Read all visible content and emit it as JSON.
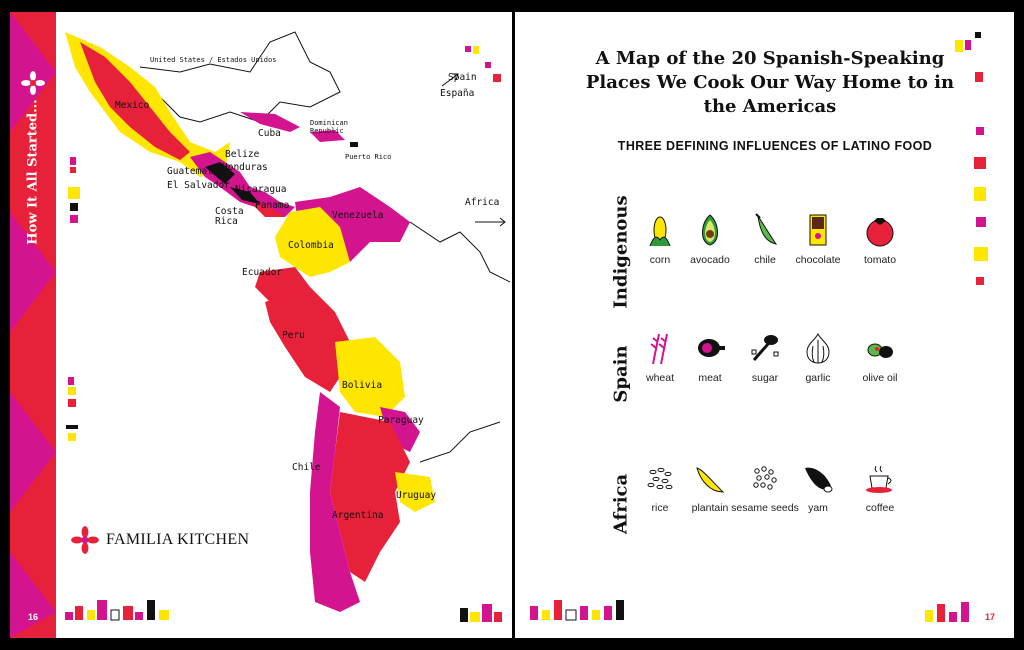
{
  "left_page": {
    "spine_title": "How It All Started...",
    "page_number": "16",
    "brand_name": "FAMILIA KITCHEN",
    "map": {
      "labels": {
        "united_states": "United States / Estados Unidos",
        "spain": "Spain",
        "espana": "España",
        "mexico": "Mexico",
        "cuba": "Cuba",
        "dominican_republic": "Dominican Republic",
        "puerto_rico": "Puerto Rico",
        "belize": "Belize",
        "honduras": "Honduras",
        "guatemala": "Guatemala",
        "el_salvador": "El Salvador",
        "nicaragua": "Nicaragua",
        "costa_rica": "Costa Rica",
        "panama": "Panama",
        "venezuela": "Venezuela",
        "colombia": "Colombia",
        "ecuador": "Ecuador",
        "africa": "Africa",
        "peru": "Peru",
        "bolivia": "Bolivia",
        "paraguay": "Paraguay",
        "chile": "Chile",
        "uruguay": "Uruguay",
        "argentina": "Argentina"
      }
    }
  },
  "right_page": {
    "page_number": "17",
    "headline": "A Map of the 20 Spanish-Speaking Places We Cook Our Way Home to in the Americas",
    "subhead": "THREE DEFINING INFLUENCES OF LATINO FOOD",
    "influences": [
      {
        "name": "Indigenous",
        "foods": [
          {
            "label": "corn",
            "icon": "corn-icon"
          },
          {
            "label": "avocado",
            "icon": "avocado-icon"
          },
          {
            "label": "chile",
            "icon": "chile-icon"
          },
          {
            "label": "chocolate",
            "icon": "chocolate-icon"
          },
          {
            "label": "tomato",
            "icon": "tomato-icon"
          }
        ]
      },
      {
        "name": "Spain",
        "foods": [
          {
            "label": "wheat",
            "icon": "wheat-icon"
          },
          {
            "label": "meat",
            "icon": "meat-icon"
          },
          {
            "label": "sugar",
            "icon": "sugar-icon"
          },
          {
            "label": "garlic",
            "icon": "garlic-icon"
          },
          {
            "label": "olive oil",
            "icon": "olive-icon"
          }
        ]
      },
      {
        "name": "Africa",
        "foods": [
          {
            "label": "rice",
            "icon": "rice-icon"
          },
          {
            "label": "plantain",
            "icon": "plantain-icon"
          },
          {
            "label": "sesame seeds",
            "icon": "sesame-icon"
          },
          {
            "label": "yam",
            "icon": "yam-icon"
          },
          {
            "label": "coffee",
            "icon": "coffee-icon"
          }
        ]
      }
    ]
  },
  "colors": {
    "red": "#e8213a",
    "magenta": "#d4148f",
    "yellow": "#ffe600",
    "black": "#111111"
  }
}
